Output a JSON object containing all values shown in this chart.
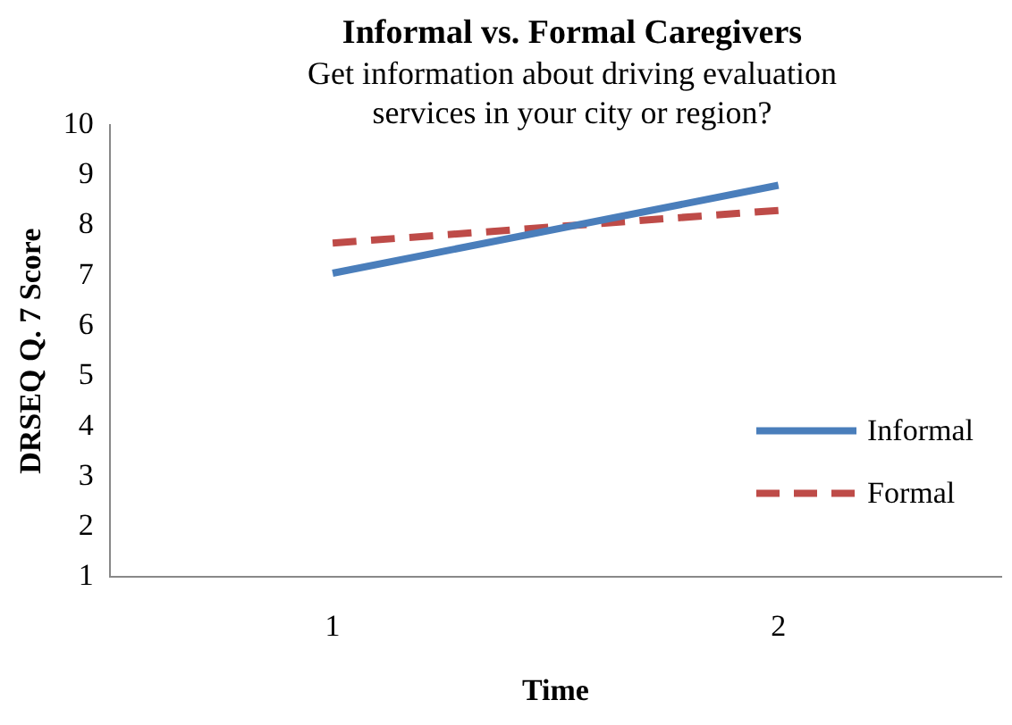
{
  "chart_data": {
    "type": "line",
    "title": "Informal vs. Formal Caregivers",
    "subtitle": "Get information about driving evaluation services in your city or region?",
    "xlabel": "Time",
    "ylabel": "DRSEQ Q. 7 Score",
    "categories": [
      "1",
      "2"
    ],
    "series": [
      {
        "name": "Informal",
        "color": "#4a7ebb",
        "values": [
          7.05,
          8.8
        ],
        "line_style": "solid"
      },
      {
        "name": "Formal",
        "color": "#be4b48",
        "values": [
          7.65,
          8.3
        ],
        "line_style": "dashed"
      }
    ],
    "ylim": [
      1,
      10
    ],
    "yticks": [
      1,
      2,
      3,
      4,
      5,
      6,
      7,
      8,
      9,
      10
    ],
    "grid": false,
    "legend": "right",
    "marker": "none"
  }
}
